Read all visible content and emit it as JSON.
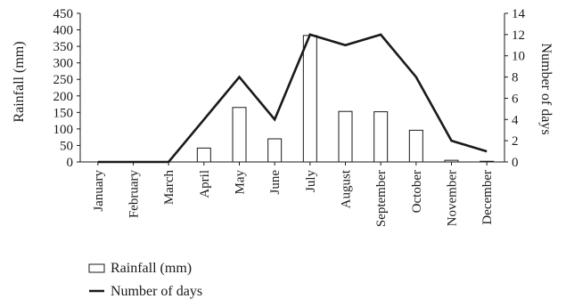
{
  "chart_data": {
    "type": "bar",
    "categories": [
      "January",
      "February",
      "March",
      "April",
      "May",
      "June",
      "July",
      "August",
      "September",
      "October",
      "November",
      "December"
    ],
    "series": [
      {
        "name": "Rainfall (mm)",
        "type": "bar",
        "axis": "left",
        "values": [
          0,
          0,
          0,
          42,
          165,
          70,
          383,
          153,
          152,
          96,
          5,
          2
        ],
        "color": "#ffffff"
      },
      {
        "name": "Number of days",
        "type": "line",
        "axis": "right",
        "values": [
          0,
          0,
          0,
          4,
          8,
          4,
          12,
          11,
          12,
          8,
          2,
          1
        ],
        "color": "#1a1a1a"
      }
    ],
    "ylabel": "Rainfall (mm)",
    "y2label": "Number of days",
    "ylim": [
      0,
      450
    ],
    "yticks": [
      0,
      50,
      100,
      150,
      200,
      250,
      300,
      350,
      400,
      450
    ],
    "y2lim": [
      0,
      14
    ],
    "y2ticks": [
      0,
      2,
      4,
      6,
      8,
      10,
      12,
      14
    ],
    "grid": false,
    "legend_position": "bottom-left"
  }
}
